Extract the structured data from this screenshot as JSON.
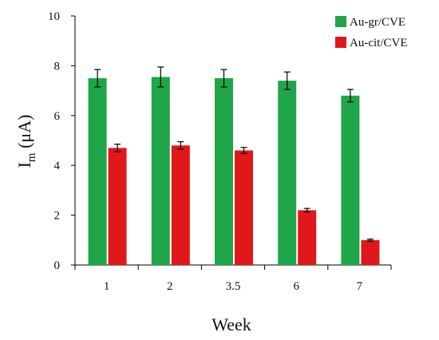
{
  "chart_data": {
    "type": "bar",
    "categories": [
      "1",
      "2",
      "3.5",
      "6",
      "7"
    ],
    "series": [
      {
        "name": "Au-gr/CVE",
        "color": "#1fa64a",
        "values": [
          7.5,
          7.55,
          7.5,
          7.4,
          6.8
        ],
        "errors": [
          0.35,
          0.4,
          0.35,
          0.35,
          0.25
        ]
      },
      {
        "name": "Au-cit/CVE",
        "color": "#e0181b",
        "values": [
          4.7,
          4.8,
          4.6,
          2.2,
          1.0
        ],
        "errors": [
          0.15,
          0.15,
          0.12,
          0.07,
          0.04
        ]
      }
    ],
    "xlabel": "Week",
    "ylabel": "I",
    "ylabel_sub": "m",
    "ylabel_unit": " (μA)",
    "ylim": [
      0,
      10
    ],
    "yticks": [
      0,
      2,
      4,
      6,
      8,
      10
    ],
    "grid": false,
    "legend_position": "top-right"
  }
}
